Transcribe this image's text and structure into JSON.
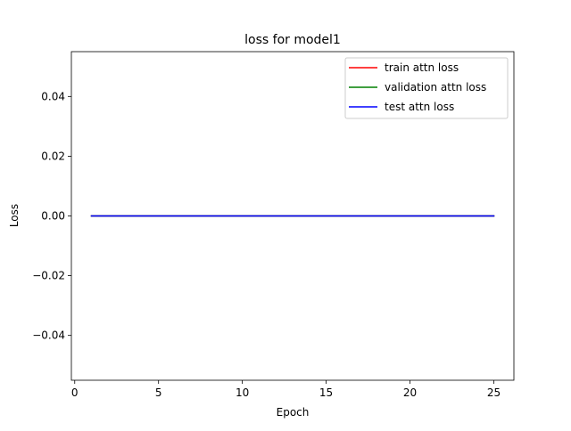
{
  "chart_data": {
    "type": "line",
    "title": "loss for model1",
    "xlabel": "Epoch",
    "ylabel": "Loss",
    "xlim": [
      -0.2,
      26.2
    ],
    "ylim": [
      -0.055,
      0.055
    ],
    "xticks": [
      0,
      5,
      10,
      15,
      20,
      25
    ],
    "xtick_labels": [
      "0",
      "5",
      "10",
      "15",
      "20",
      "25"
    ],
    "yticks": [
      -0.04,
      -0.02,
      0.0,
      0.02,
      0.04
    ],
    "ytick_labels": [
      "−0.04",
      "−0.02",
      "0.00",
      "0.02",
      "0.04"
    ],
    "x": [
      1,
      2,
      3,
      4,
      5,
      6,
      7,
      8,
      9,
      10,
      11,
      12,
      13,
      14,
      15,
      16,
      17,
      18,
      19,
      20,
      21,
      22,
      23,
      24,
      25
    ],
    "series": [
      {
        "name": "train attn loss",
        "color": "#ff0000",
        "values": [
          0,
          0,
          0,
          0,
          0,
          0,
          0,
          0,
          0,
          0,
          0,
          0,
          0,
          0,
          0,
          0,
          0,
          0,
          0,
          0,
          0,
          0,
          0,
          0,
          0
        ]
      },
      {
        "name": "validation attn loss",
        "color": "#008000",
        "values": [
          0,
          0,
          0,
          0,
          0,
          0,
          0,
          0,
          0,
          0,
          0,
          0,
          0,
          0,
          0,
          0,
          0,
          0,
          0,
          0,
          0,
          0,
          0,
          0,
          0
        ]
      },
      {
        "name": "test attn loss",
        "color": "#0000ff",
        "values": [
          0,
          0,
          0,
          0,
          0,
          0,
          0,
          0,
          0,
          0,
          0,
          0,
          0,
          0,
          0,
          0,
          0,
          0,
          0,
          0,
          0,
          0,
          0,
          0,
          0
        ]
      }
    ],
    "grid": false,
    "legend_position": "top-right"
  }
}
